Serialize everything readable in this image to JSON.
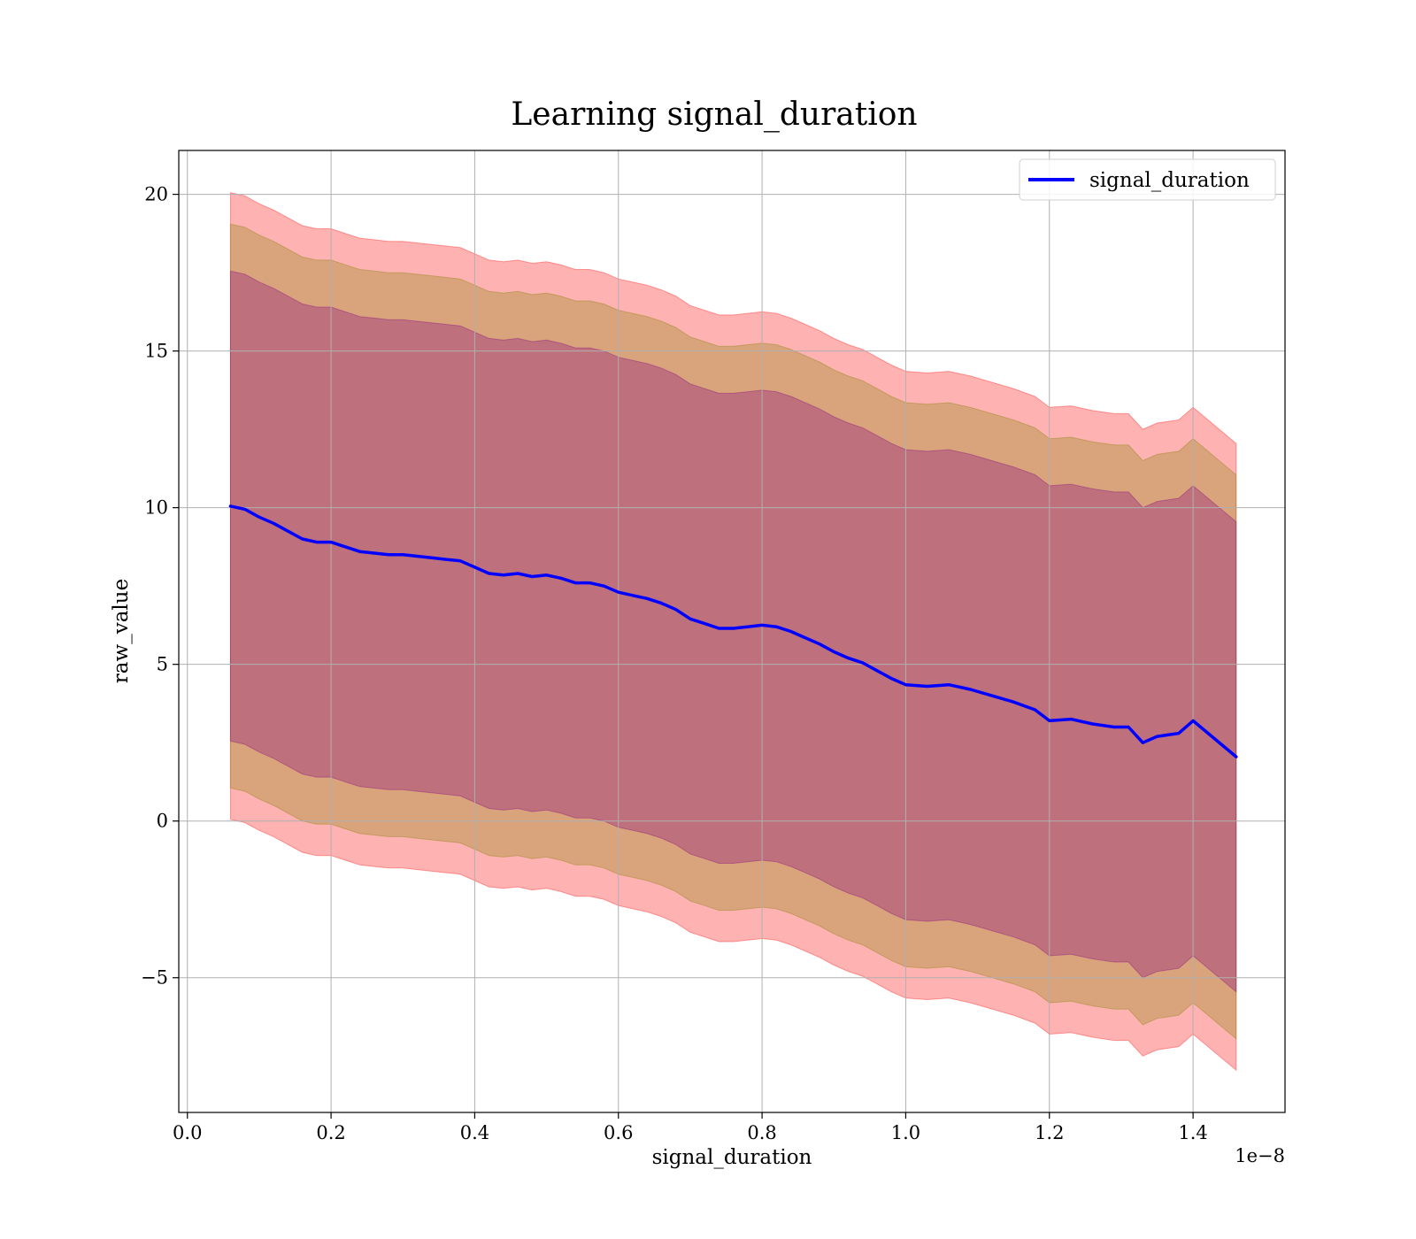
{
  "chart_data": {
    "type": "line",
    "title": "Learning signal_duration",
    "xlabel": "signal_duration",
    "ylabel": "raw_value",
    "x_offset_label": "1e−8",
    "xlim": [
      -0.012,
      1.528
    ],
    "ylim": [
      -9.3,
      21.4
    ],
    "x_ticks": [
      0.0,
      0.2,
      0.4,
      0.6,
      0.8,
      1.0,
      1.2,
      1.4
    ],
    "x_tick_labels": [
      "0.0",
      "0.2",
      "0.4",
      "0.6",
      "0.8",
      "1.0",
      "1.2",
      "1.4"
    ],
    "y_ticks": [
      -5,
      0,
      5,
      10,
      15,
      20
    ],
    "y_tick_labels": [
      "−5",
      "0",
      "5",
      "10",
      "15",
      "20"
    ],
    "grid": true,
    "legend_position": "top-right",
    "colors": {
      "line": "#0000ff",
      "outer_band": "#ff0000",
      "middle_band": "#808000",
      "inner_band": "#800080"
    },
    "band_opacity": 0.3,
    "band_half_widths": [
      10.0,
      9.0,
      7.5
    ],
    "series": [
      {
        "name": "signal_duration",
        "x": [
          0.06,
          0.08,
          0.1,
          0.12,
          0.14,
          0.16,
          0.18,
          0.2,
          0.22,
          0.24,
          0.26,
          0.28,
          0.3,
          0.32,
          0.34,
          0.36,
          0.38,
          0.4,
          0.42,
          0.44,
          0.46,
          0.48,
          0.5,
          0.52,
          0.54,
          0.56,
          0.58,
          0.6,
          0.62,
          0.64,
          0.66,
          0.68,
          0.7,
          0.72,
          0.74,
          0.76,
          0.78,
          0.8,
          0.82,
          0.84,
          0.86,
          0.88,
          0.9,
          0.92,
          0.94,
          0.96,
          0.98,
          1.0,
          1.03,
          1.06,
          1.09,
          1.12,
          1.15,
          1.18,
          1.2,
          1.23,
          1.26,
          1.29,
          1.31,
          1.33,
          1.35,
          1.38,
          1.4,
          1.46
        ],
        "values": [
          10.05,
          9.95,
          9.7,
          9.5,
          9.25,
          9.0,
          8.9,
          8.9,
          8.75,
          8.6,
          8.55,
          8.5,
          8.5,
          8.45,
          8.4,
          8.35,
          8.3,
          8.1,
          7.9,
          7.85,
          7.9,
          7.8,
          7.85,
          7.75,
          7.6,
          7.6,
          7.5,
          7.3,
          7.2,
          7.1,
          6.95,
          6.75,
          6.45,
          6.3,
          6.15,
          6.15,
          6.2,
          6.25,
          6.2,
          6.05,
          5.85,
          5.65,
          5.4,
          5.2,
          5.05,
          4.8,
          4.55,
          4.35,
          4.3,
          4.35,
          4.2,
          4.0,
          3.8,
          3.55,
          3.2,
          3.25,
          3.1,
          3.0,
          3.0,
          2.5,
          2.7,
          2.8,
          3.2,
          2.05
        ]
      }
    ]
  }
}
